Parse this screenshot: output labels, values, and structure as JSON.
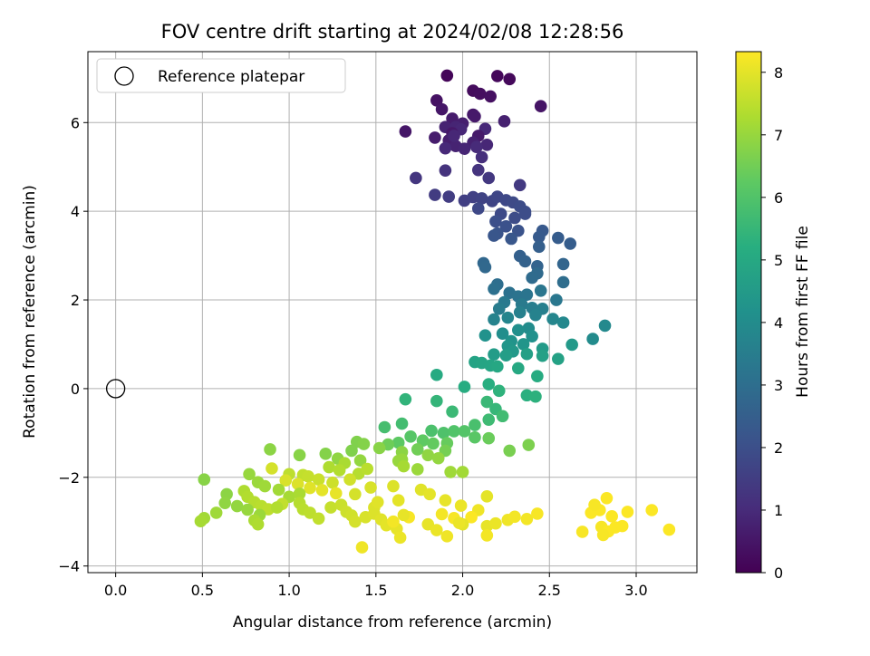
{
  "chart_data": {
    "type": "scatter",
    "title": "FOV centre drift starting at 2024/02/08 12:28:56",
    "xlabel": "Angular distance from reference (arcmin)",
    "ylabel": "Rotation from reference (arcmin)",
    "xlim": [
      -0.16,
      3.35
    ],
    "ylim": [
      -4.15,
      7.6
    ],
    "xticks": [
      0.0,
      0.5,
      1.0,
      1.5,
      2.0,
      2.5,
      3.0
    ],
    "xtick_labels": [
      "0.0",
      "0.5",
      "1.0",
      "1.5",
      "2.0",
      "2.5",
      "3.0"
    ],
    "yticks": [
      -4,
      -2,
      0,
      2,
      4,
      6
    ],
    "ytick_labels": [
      "−4",
      "−2",
      "0",
      "2",
      "4",
      "6"
    ],
    "grid": true,
    "legend": {
      "position": "top-left",
      "entries": [
        "Reference platepar"
      ]
    },
    "reference_point": {
      "x": 0.0,
      "y": 0.0,
      "label": "Reference platepar"
    },
    "colorbar": {
      "label": "Hours from first FF file",
      "colormap": "viridis",
      "range": [
        0,
        8.33
      ],
      "ticks": [
        0,
        1,
        2,
        3,
        4,
        5,
        6,
        7,
        8
      ],
      "tick_labels": [
        "0",
        "1",
        "2",
        "3",
        "4",
        "5",
        "6",
        "7",
        "8"
      ]
    },
    "points": [
      [
        1.91,
        7.06,
        0.1
      ],
      [
        2.2,
        7.05,
        0.15
      ],
      [
        2.27,
        6.98,
        0.2
      ],
      [
        2.06,
        6.72,
        0.25
      ],
      [
        2.1,
        6.65,
        0.3
      ],
      [
        2.16,
        6.59,
        0.35
      ],
      [
        1.85,
        6.5,
        0.4
      ],
      [
        2.45,
        6.37,
        0.45
      ],
      [
        1.88,
        6.3,
        0.5
      ],
      [
        2.06,
        6.18,
        0.55
      ],
      [
        2.07,
        6.14,
        0.6
      ],
      [
        1.94,
        6.09,
        0.65
      ],
      [
        2.0,
        5.98,
        0.7
      ],
      [
        2.24,
        6.03,
        0.75
      ],
      [
        1.9,
        5.9,
        0.8
      ],
      [
        1.96,
        5.9,
        0.85
      ],
      [
        1.99,
        5.85,
        0.9
      ],
      [
        2.13,
        5.86,
        0.95
      ],
      [
        1.67,
        5.8,
        0.5
      ],
      [
        1.94,
        5.76,
        0.55
      ],
      [
        2.09,
        5.7,
        0.6
      ],
      [
        1.84,
        5.66,
        0.65
      ],
      [
        1.92,
        5.6,
        0.7
      ],
      [
        2.06,
        5.55,
        0.75
      ],
      [
        1.96,
        5.47,
        0.8
      ],
      [
        2.01,
        5.41,
        0.85
      ],
      [
        2.14,
        5.5,
        0.9
      ],
      [
        1.9,
        5.42,
        0.95
      ],
      [
        2.08,
        5.45,
        1.0
      ],
      [
        1.95,
        5.7,
        0.9
      ],
      [
        2.11,
        5.22,
        1.1
      ],
      [
        1.9,
        4.92,
        1.2
      ],
      [
        2.09,
        4.93,
        1.25
      ],
      [
        1.73,
        4.75,
        1.3
      ],
      [
        2.15,
        4.75,
        1.35
      ],
      [
        2.33,
        4.59,
        1.4
      ],
      [
        1.84,
        4.37,
        1.45
      ],
      [
        1.92,
        4.33,
        1.5
      ],
      [
        2.01,
        4.24,
        1.55
      ],
      [
        2.06,
        4.32,
        1.6
      ],
      [
        2.11,
        4.29,
        1.65
      ],
      [
        2.17,
        4.23,
        1.7
      ],
      [
        2.2,
        4.33,
        1.75
      ],
      [
        2.25,
        4.25,
        1.8
      ],
      [
        2.29,
        4.2,
        1.85
      ],
      [
        2.33,
        4.11,
        1.9
      ],
      [
        2.36,
        3.99,
        1.95
      ],
      [
        2.09,
        4.06,
        1.8
      ],
      [
        2.22,
        3.94,
        1.85
      ],
      [
        2.3,
        3.85,
        1.9
      ],
      [
        2.36,
        3.94,
        1.95
      ],
      [
        2.19,
        3.77,
        2.0
      ],
      [
        2.25,
        3.66,
        2.05
      ],
      [
        2.32,
        3.56,
        2.1
      ],
      [
        2.2,
        3.5,
        2.15
      ],
      [
        2.18,
        3.45,
        2.2
      ],
      [
        2.28,
        3.38,
        2.25
      ],
      [
        2.46,
        3.56,
        2.3
      ],
      [
        2.44,
        3.42,
        2.35
      ],
      [
        2.55,
        3.4,
        2.4
      ],
      [
        2.62,
        3.27,
        2.45
      ],
      [
        2.44,
        3.2,
        2.5
      ],
      [
        2.33,
        2.99,
        2.55
      ],
      [
        2.36,
        2.87,
        2.6
      ],
      [
        2.43,
        2.76,
        2.65
      ],
      [
        2.58,
        2.81,
        2.7
      ],
      [
        2.12,
        2.83,
        2.75
      ],
      [
        2.13,
        2.74,
        2.8
      ],
      [
        2.43,
        2.6,
        2.85
      ],
      [
        2.4,
        2.5,
        2.9
      ],
      [
        2.58,
        2.4,
        2.95
      ],
      [
        2.2,
        2.35,
        3.0
      ],
      [
        2.18,
        2.25,
        3.05
      ],
      [
        2.27,
        2.16,
        3.1
      ],
      [
        2.32,
        2.08,
        3.15
      ],
      [
        2.37,
        2.12,
        3.2
      ],
      [
        2.45,
        2.21,
        3.25
      ],
      [
        2.54,
        2.0,
        3.3
      ],
      [
        2.24,
        1.95,
        3.35
      ],
      [
        2.34,
        1.9,
        3.4
      ],
      [
        2.21,
        1.8,
        3.45
      ],
      [
        2.4,
        1.82,
        3.5
      ],
      [
        2.46,
        1.8,
        3.55
      ],
      [
        2.33,
        1.72,
        3.6
      ],
      [
        2.42,
        1.66,
        3.65
      ],
      [
        2.18,
        1.56,
        3.7
      ],
      [
        2.26,
        1.6,
        3.75
      ],
      [
        2.52,
        1.57,
        3.8
      ],
      [
        2.58,
        1.49,
        3.85
      ],
      [
        2.82,
        1.42,
        3.9
      ],
      [
        2.75,
        1.12,
        3.95
      ],
      [
        2.38,
        1.36,
        4.0
      ],
      [
        2.23,
        1.24,
        4.05
      ],
      [
        2.32,
        1.32,
        4.1
      ],
      [
        2.4,
        1.18,
        4.15
      ],
      [
        2.13,
        1.2,
        4.2
      ],
      [
        2.28,
        1.07,
        4.25
      ],
      [
        2.35,
        1.0,
        4.3
      ],
      [
        2.26,
        0.96,
        4.35
      ],
      [
        2.29,
        0.84,
        4.4
      ],
      [
        2.63,
        0.99,
        4.45
      ],
      [
        2.46,
        0.9,
        4.5
      ],
      [
        2.18,
        0.77,
        4.55
      ],
      [
        2.25,
        0.75,
        4.6
      ],
      [
        2.37,
        0.78,
        4.65
      ],
      [
        2.46,
        0.74,
        4.7
      ],
      [
        2.55,
        0.67,
        4.75
      ],
      [
        2.07,
        0.6,
        4.8
      ],
      [
        2.11,
        0.58,
        4.85
      ],
      [
        2.16,
        0.52,
        4.9
      ],
      [
        2.2,
        0.5,
        4.95
      ],
      [
        2.32,
        0.46,
        5.0
      ],
      [
        1.85,
        0.31,
        5.05
      ],
      [
        2.43,
        0.28,
        5.1
      ],
      [
        2.01,
        0.04,
        5.15
      ],
      [
        2.15,
        0.1,
        5.2
      ],
      [
        2.37,
        -0.15,
        5.25
      ],
      [
        2.42,
        -0.18,
        5.3
      ],
      [
        2.21,
        -0.05,
        5.35
      ],
      [
        1.67,
        -0.24,
        5.4
      ],
      [
        1.85,
        -0.28,
        5.45
      ],
      [
        2.19,
        -0.46,
        5.5
      ],
      [
        2.14,
        -0.3,
        5.55
      ],
      [
        1.94,
        -0.52,
        5.6
      ],
      [
        2.15,
        -0.7,
        5.65
      ],
      [
        2.23,
        -0.62,
        5.7
      ],
      [
        1.65,
        -0.79,
        5.75
      ],
      [
        1.55,
        -0.87,
        5.8
      ],
      [
        2.07,
        -0.82,
        5.85
      ],
      [
        1.82,
        -0.95,
        5.9
      ],
      [
        1.89,
        -1.0,
        5.95
      ],
      [
        1.95,
        -0.96,
        6.0
      ],
      [
        2.01,
        -0.96,
        6.05
      ],
      [
        1.7,
        -1.08,
        6.1
      ],
      [
        2.07,
        -1.1,
        6.15
      ],
      [
        1.63,
        -1.22,
        6.2
      ],
      [
        1.77,
        -1.17,
        6.25
      ],
      [
        1.83,
        -1.24,
        6.3
      ],
      [
        1.91,
        -1.23,
        6.35
      ],
      [
        2.15,
        -1.12,
        6.4
      ],
      [
        1.57,
        -1.26,
        6.45
      ],
      [
        1.74,
        -1.37,
        6.5
      ],
      [
        1.9,
        -1.4,
        6.55
      ],
      [
        2.27,
        -1.4,
        6.6
      ],
      [
        2.38,
        -1.27,
        6.65
      ],
      [
        1.39,
        -1.2,
        6.7
      ],
      [
        1.43,
        -1.25,
        6.75
      ],
      [
        1.52,
        -1.34,
        6.8
      ],
      [
        1.65,
        -1.43,
        6.85
      ],
      [
        1.8,
        -1.5,
        6.9
      ],
      [
        1.86,
        -1.57,
        6.95
      ],
      [
        1.65,
        -1.6,
        7.0
      ],
      [
        1.36,
        -1.4,
        6.7
      ],
      [
        1.21,
        -1.47,
        6.75
      ],
      [
        1.06,
        -1.5,
        6.8
      ],
      [
        0.89,
        -1.37,
        6.85
      ],
      [
        1.28,
        -1.58,
        6.9
      ],
      [
        1.41,
        -1.62,
        6.95
      ],
      [
        1.63,
        -1.63,
        7.0
      ],
      [
        1.74,
        -1.82,
        7.05
      ],
      [
        1.93,
        -1.88,
        7.1
      ],
      [
        2.0,
        -1.88,
        7.15
      ],
      [
        1.66,
        -1.75,
        7.2
      ],
      [
        1.32,
        -1.68,
        7.25
      ],
      [
        1.23,
        -1.77,
        7.3
      ],
      [
        1.29,
        -1.84,
        7.35
      ],
      [
        1.4,
        -1.92,
        7.4
      ],
      [
        1.45,
        -1.81,
        7.45
      ],
      [
        1.0,
        -1.93,
        7.5
      ],
      [
        1.08,
        -1.95,
        7.55
      ],
      [
        1.11,
        -1.98,
        7.6
      ],
      [
        1.17,
        -2.05,
        7.65
      ],
      [
        1.25,
        -2.12,
        7.7
      ],
      [
        1.35,
        -2.05,
        7.75
      ],
      [
        0.9,
        -1.8,
        7.8
      ],
      [
        0.98,
        -2.07,
        7.85
      ],
      [
        1.05,
        -2.15,
        7.9
      ],
      [
        1.12,
        -2.24,
        7.95
      ],
      [
        1.19,
        -2.29,
        8.0
      ],
      [
        1.27,
        -2.36,
        8.05
      ],
      [
        0.77,
        -1.93,
        7.0
      ],
      [
        0.82,
        -2.11,
        7.05
      ],
      [
        0.86,
        -2.2,
        7.1
      ],
      [
        0.94,
        -2.28,
        7.15
      ],
      [
        1.0,
        -2.44,
        7.2
      ],
      [
        1.06,
        -2.37,
        7.25
      ],
      [
        0.74,
        -2.31,
        7.3
      ],
      [
        0.76,
        -2.44,
        7.35
      ],
      [
        0.8,
        -2.56,
        7.4
      ],
      [
        0.84,
        -2.65,
        7.45
      ],
      [
        0.88,
        -2.72,
        7.5
      ],
      [
        0.96,
        -2.6,
        7.55
      ],
      [
        0.51,
        -2.05,
        6.8
      ],
      [
        0.64,
        -2.38,
        6.85
      ],
      [
        0.63,
        -2.58,
        6.9
      ],
      [
        0.7,
        -2.65,
        6.95
      ],
      [
        0.76,
        -2.73,
        7.0
      ],
      [
        0.83,
        -2.85,
        7.05
      ],
      [
        0.58,
        -2.8,
        7.1
      ],
      [
        0.51,
        -2.92,
        7.15
      ],
      [
        0.49,
        -2.99,
        7.2
      ],
      [
        0.8,
        -2.97,
        7.25
      ],
      [
        0.82,
        -3.06,
        7.3
      ],
      [
        0.93,
        -2.68,
        7.35
      ],
      [
        1.06,
        -2.58,
        7.4
      ],
      [
        1.08,
        -2.72,
        7.45
      ],
      [
        1.12,
        -2.8,
        7.5
      ],
      [
        1.17,
        -2.93,
        7.55
      ],
      [
        1.24,
        -2.68,
        7.6
      ],
      [
        1.3,
        -2.62,
        7.65
      ],
      [
        1.33,
        -2.78,
        7.7
      ],
      [
        1.36,
        -2.86,
        7.75
      ],
      [
        1.38,
        -3.0,
        7.8
      ],
      [
        1.44,
        -2.9,
        7.85
      ],
      [
        1.49,
        -2.82,
        7.9
      ],
      [
        1.53,
        -2.95,
        7.95
      ],
      [
        1.56,
        -3.08,
        8.0
      ],
      [
        1.62,
        -3.16,
        8.05
      ],
      [
        1.64,
        -3.36,
        8.1
      ],
      [
        1.42,
        -3.58,
        8.15
      ],
      [
        1.6,
        -3.0,
        8.2
      ],
      [
        1.69,
        -2.9,
        8.25
      ],
      [
        1.49,
        -2.68,
        7.9
      ],
      [
        1.51,
        -2.56,
        7.95
      ],
      [
        1.63,
        -2.52,
        8.0
      ],
      [
        1.66,
        -2.85,
        8.05
      ],
      [
        1.38,
        -2.38,
        7.8
      ],
      [
        1.47,
        -2.23,
        7.85
      ],
      [
        1.6,
        -2.2,
        7.9
      ],
      [
        1.76,
        -2.28,
        7.95
      ],
      [
        1.81,
        -2.38,
        8.0
      ],
      [
        1.9,
        -2.52,
        8.05
      ],
      [
        1.99,
        -2.64,
        8.1
      ],
      [
        2.09,
        -2.74,
        8.15
      ],
      [
        1.88,
        -2.83,
        8.2
      ],
      [
        1.95,
        -2.92,
        8.25
      ],
      [
        2.05,
        -2.9,
        8.3
      ],
      [
        2.0,
        -3.06,
        8.0
      ],
      [
        2.14,
        -3.1,
        8.05
      ],
      [
        2.19,
        -3.04,
        8.1
      ],
      [
        2.26,
        -2.96,
        8.15
      ],
      [
        2.37,
        -2.94,
        8.2
      ],
      [
        2.43,
        -2.82,
        8.25
      ],
      [
        2.14,
        -2.43,
        8.0
      ],
      [
        1.8,
        -3.06,
        8.05
      ],
      [
        1.85,
        -3.19,
        8.1
      ],
      [
        1.91,
        -3.33,
        8.15
      ],
      [
        2.14,
        -3.31,
        8.2
      ],
      [
        2.69,
        -3.23,
        8.25
      ],
      [
        2.74,
        -2.8,
        8.3
      ],
      [
        2.79,
        -2.74,
        8.3
      ],
      [
        2.83,
        -2.47,
        8.3
      ],
      [
        2.76,
        -2.62,
        8.25
      ],
      [
        2.86,
        -2.88,
        8.3
      ],
      [
        2.8,
        -3.12,
        8.25
      ],
      [
        2.84,
        -3.22,
        8.3
      ],
      [
        2.88,
        -3.13,
        8.3
      ],
      [
        2.92,
        -3.1,
        8.3
      ],
      [
        2.95,
        -2.78,
        8.3
      ],
      [
        3.09,
        -2.74,
        8.3
      ],
      [
        3.19,
        -3.18,
        8.3
      ],
      [
        2.81,
        -3.3,
        8.25
      ],
      [
        2.3,
        -2.89,
        8.2
      ],
      [
        1.98,
        -3.03,
        8.1
      ]
    ]
  }
}
